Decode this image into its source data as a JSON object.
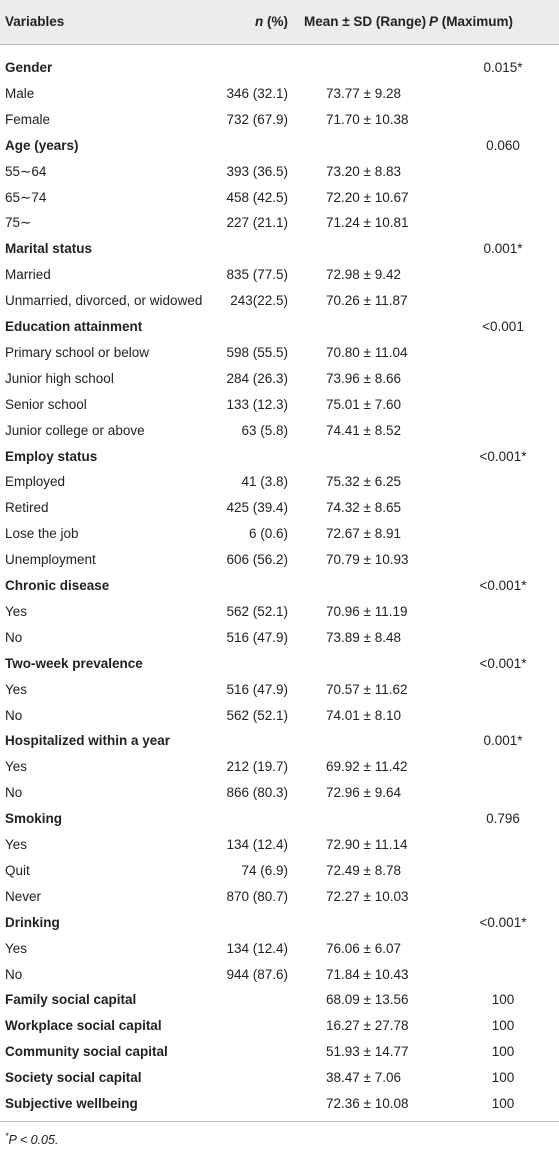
{
  "header": {
    "variables": "Variables",
    "n_italic": "n",
    "n_suffix": " (%)",
    "mean": "Mean ± SD (Range)",
    "p_italic": "P",
    "p_suffix": " (Maximum)"
  },
  "rows": [
    {
      "type": "group",
      "label": "Gender",
      "n": "",
      "mean": "",
      "p": "0.015*"
    },
    {
      "type": "item",
      "label": "Male",
      "n": "346 (32.1)",
      "mean": "73.77  ± 9.28",
      "p": ""
    },
    {
      "type": "item",
      "label": "Female",
      "n": "732 (67.9)",
      "mean": "71.70  ± 10.38",
      "p": ""
    },
    {
      "type": "group",
      "label": "Age (years)",
      "n": "",
      "mean": "",
      "p": "0.060"
    },
    {
      "type": "item",
      "label": "55∼64",
      "n": "393 (36.5)",
      "mean": "73.20  ± 8.83",
      "p": ""
    },
    {
      "type": "item",
      "label": "65∼74",
      "n": "458 (42.5)",
      "mean": "72.20  ± 10.67",
      "p": ""
    },
    {
      "type": "item",
      "label": "75∼",
      "n": "227 (21.1)",
      "mean": "71.24  ± 10.81",
      "p": ""
    },
    {
      "type": "group",
      "label": "Marital status",
      "n": "",
      "mean": "",
      "p": "0.001*"
    },
    {
      "type": "item",
      "label": "Married",
      "n": "835 (77.5)",
      "mean": "72.98  ± 9.42",
      "p": ""
    },
    {
      "type": "item",
      "label": "Unmarried, divorced, or widowed",
      "n": "243(22.5)",
      "mean": "70.26  ± 11.87",
      "p": ""
    },
    {
      "type": "group",
      "label": "Education attainment",
      "n": "",
      "mean": "",
      "p": "<0.001"
    },
    {
      "type": "item",
      "label": "Primary school or below",
      "n": "598 (55.5)",
      "mean": "70.80  ± 11.04",
      "p": ""
    },
    {
      "type": "item",
      "label": "Junior high school",
      "n": "284 (26.3)",
      "mean": "73.96  ± 8.66",
      "p": ""
    },
    {
      "type": "item",
      "label": "Senior school",
      "n": "133 (12.3)",
      "mean": "75.01  ± 7.60",
      "p": ""
    },
    {
      "type": "item",
      "label": "Junior college or above",
      "n": "63 (5.8)",
      "mean": "74.41  ± 8.52",
      "p": ""
    },
    {
      "type": "group",
      "label": "Employ status",
      "n": "",
      "mean": "",
      "p": "<0.001*"
    },
    {
      "type": "item",
      "label": "Employed",
      "n": "41 (3.8)",
      "mean": "75.32  ± 6.25",
      "p": ""
    },
    {
      "type": "item",
      "label": "Retired",
      "n": "425 (39.4)",
      "mean": "74.32  ± 8.65",
      "p": ""
    },
    {
      "type": "item",
      "label": "Lose the job",
      "n": "6 (0.6)",
      "mean": "72.67  ± 8.91",
      "p": ""
    },
    {
      "type": "item",
      "label": "Unemployment",
      "n": "606 (56.2)",
      "mean": "70.79  ± 10.93",
      "p": ""
    },
    {
      "type": "group",
      "label": "Chronic disease",
      "n": "",
      "mean": "",
      "p": "<0.001*"
    },
    {
      "type": "item",
      "label": "Yes",
      "n": "562 (52.1)",
      "mean": "70.96  ± 11.19",
      "p": ""
    },
    {
      "type": "item",
      "label": "No",
      "n": "516 (47.9)",
      "mean": "73.89  ± 8.48",
      "p": ""
    },
    {
      "type": "group",
      "label": "Two-week prevalence",
      "n": "",
      "mean": "",
      "p": "<0.001*"
    },
    {
      "type": "item",
      "label": "Yes",
      "n": "516 (47.9)",
      "mean": "70.57  ± 11.62",
      "p": ""
    },
    {
      "type": "item",
      "label": "No",
      "n": "562 (52.1)",
      "mean": "74.01  ± 8.10",
      "p": ""
    },
    {
      "type": "group",
      "label": "Hospitalized within a year",
      "n": "",
      "mean": "",
      "p": "0.001*"
    },
    {
      "type": "item",
      "label": "Yes",
      "n": "212 (19.7)",
      "mean": "69.92  ± 11.42",
      "p": ""
    },
    {
      "type": "item",
      "label": "No",
      "n": "866 (80.3)",
      "mean": "72.96  ± 9.64",
      "p": ""
    },
    {
      "type": "group",
      "label": "Smoking",
      "n": "",
      "mean": "",
      "p": "0.796"
    },
    {
      "type": "item",
      "label": "Yes",
      "n": "134 (12.4)",
      "mean": "72.90  ± 11.14",
      "p": ""
    },
    {
      "type": "item",
      "label": "Quit",
      "n": "74 (6.9)",
      "mean": "72.49  ± 8.78",
      "p": ""
    },
    {
      "type": "item",
      "label": "Never",
      "n": "870 (80.7)",
      "mean": "72.27  ± 10.03",
      "p": ""
    },
    {
      "type": "group",
      "label": "Drinking",
      "n": "",
      "mean": "",
      "p": "<0.001*"
    },
    {
      "type": "item",
      "label": "Yes",
      "n": "134 (12.4)",
      "mean": "76.06  ± 6.07",
      "p": ""
    },
    {
      "type": "item",
      "label": "No",
      "n": "944 (87.6)",
      "mean": "71.84  ± 10.43",
      "p": ""
    },
    {
      "type": "group",
      "label": "Family social capital",
      "n": "",
      "mean": "68.09  ± 13.56",
      "p": "100"
    },
    {
      "type": "group",
      "label": "Workplace social capital",
      "n": "",
      "mean": "16.27  ± 27.78",
      "p": "100"
    },
    {
      "type": "group",
      "label": "Community social capital",
      "n": "",
      "mean": "51.93  ± 14.77",
      "p": "100"
    },
    {
      "type": "group",
      "label": "Society social capital",
      "n": "",
      "mean": "38.47  ± 7.06",
      "p": "100"
    },
    {
      "type": "group",
      "label": "Subjective wellbeing",
      "n": "",
      "mean": "72.36  ± 10.08",
      "p": "100"
    }
  ],
  "footnote": {
    "marker": "*",
    "text": "P < 0.05."
  }
}
